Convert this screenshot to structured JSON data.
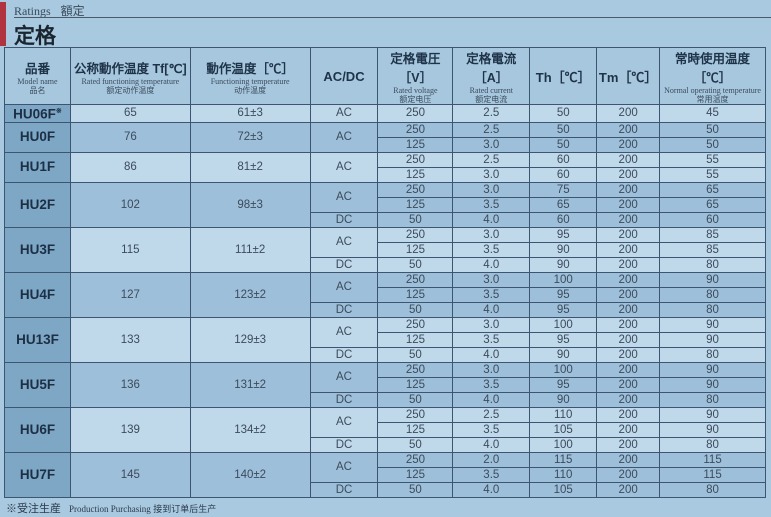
{
  "header": {
    "subtitle_en": "Ratings",
    "subtitle_jp": "額定",
    "title": "定格"
  },
  "columns": [
    {
      "jp": "品番",
      "en": "Model name",
      "cn": "品名"
    },
    {
      "jp": "公称動作温度 Tf[℃]",
      "en": "Rated functioning temperature",
      "cn": "额定动作温度"
    },
    {
      "jp": "動作温度［℃］",
      "en": "Functioning temperature",
      "cn": "动作温度"
    },
    {
      "jp": "AC/DC"
    },
    {
      "jp": "定格電圧［V］",
      "en": "Rated voltage",
      "cn": "额定电压"
    },
    {
      "jp": "定格電流［A］",
      "en": "Rated current",
      "cn": "额定电流"
    },
    {
      "jp": "Th［℃］"
    },
    {
      "jp": "Tm［℃］"
    },
    {
      "jp": "常時使用温度［℃］",
      "en": "Normal operating temperature",
      "cn": "常用温度"
    }
  ],
  "rows": [
    {
      "model": "HU06F",
      "mark": "※",
      "tf": "65",
      "func": "61±3",
      "groups": [
        {
          "type": "AC",
          "subs": [
            [
              "250",
              "2.5",
              "50",
              "200",
              "45"
            ]
          ]
        }
      ]
    },
    {
      "model": "HU0F",
      "tf": "76",
      "func": "72±3",
      "groups": [
        {
          "type": "AC",
          "subs": [
            [
              "250",
              "2.5",
              "50",
              "200",
              "50"
            ],
            [
              "125",
              "3.0",
              "50",
              "200",
              "50"
            ]
          ]
        }
      ]
    },
    {
      "model": "HU1F",
      "tf": "86",
      "func": "81±2",
      "groups": [
        {
          "type": "AC",
          "subs": [
            [
              "250",
              "2.5",
              "60",
              "200",
              "55"
            ],
            [
              "125",
              "3.0",
              "60",
              "200",
              "55"
            ]
          ]
        }
      ]
    },
    {
      "model": "HU2F",
      "tf": "102",
      "func": "98±3",
      "groups": [
        {
          "type": "AC",
          "subs": [
            [
              "250",
              "3.0",
              "75",
              "200",
              "65"
            ],
            [
              "125",
              "3.5",
              "65",
              "200",
              "65"
            ]
          ]
        },
        {
          "type": "DC",
          "subs": [
            [
              "50",
              "4.0",
              "60",
              "200",
              "60"
            ]
          ]
        }
      ]
    },
    {
      "model": "HU3F",
      "tf": "115",
      "func": "111±2",
      "groups": [
        {
          "type": "AC",
          "subs": [
            [
              "250",
              "3.0",
              "95",
              "200",
              "85"
            ],
            [
              "125",
              "3.5",
              "90",
              "200",
              "85"
            ]
          ]
        },
        {
          "type": "DC",
          "subs": [
            [
              "50",
              "4.0",
              "90",
              "200",
              "80"
            ]
          ]
        }
      ]
    },
    {
      "model": "HU4F",
      "tf": "127",
      "func": "123±2",
      "groups": [
        {
          "type": "AC",
          "subs": [
            [
              "250",
              "3.0",
              "100",
              "200",
              "90"
            ],
            [
              "125",
              "3.5",
              "95",
              "200",
              "80"
            ]
          ]
        },
        {
          "type": "DC",
          "subs": [
            [
              "50",
              "4.0",
              "95",
              "200",
              "80"
            ]
          ]
        }
      ]
    },
    {
      "model": "HU13F",
      "tf": "133",
      "func": "129±3",
      "groups": [
        {
          "type": "AC",
          "subs": [
            [
              "250",
              "3.0",
              "100",
              "200",
              "90"
            ],
            [
              "125",
              "3.5",
              "95",
              "200",
              "90"
            ]
          ]
        },
        {
          "type": "DC",
          "subs": [
            [
              "50",
              "4.0",
              "90",
              "200",
              "80"
            ]
          ]
        }
      ]
    },
    {
      "model": "HU5F",
      "tf": "136",
      "func": "131±2",
      "groups": [
        {
          "type": "AC",
          "subs": [
            [
              "250",
              "3.0",
              "100",
              "200",
              "90"
            ],
            [
              "125",
              "3.5",
              "95",
              "200",
              "90"
            ]
          ]
        },
        {
          "type": "DC",
          "subs": [
            [
              "50",
              "4.0",
              "90",
              "200",
              "80"
            ]
          ]
        }
      ]
    },
    {
      "model": "HU6F",
      "tf": "139",
      "func": "134±2",
      "groups": [
        {
          "type": "AC",
          "subs": [
            [
              "250",
              "2.5",
              "110",
              "200",
              "90"
            ],
            [
              "125",
              "3.5",
              "105",
              "200",
              "90"
            ]
          ]
        },
        {
          "type": "DC",
          "subs": [
            [
              "50",
              "4.0",
              "100",
              "200",
              "80"
            ]
          ]
        }
      ]
    },
    {
      "model": "HU7F",
      "tf": "145",
      "func": "140±2",
      "groups": [
        {
          "type": "AC",
          "subs": [
            [
              "250",
              "2.0",
              "115",
              "200",
              "115"
            ],
            [
              "125",
              "3.5",
              "110",
              "200",
              "115"
            ]
          ]
        },
        {
          "type": "DC",
          "subs": [
            [
              "50",
              "4.0",
              "105",
              "200",
              "80"
            ]
          ]
        }
      ]
    }
  ],
  "footnote": {
    "mark": "※受注生産",
    "en": "Production Purchasing",
    "cn": "接到订单后生产"
  }
}
